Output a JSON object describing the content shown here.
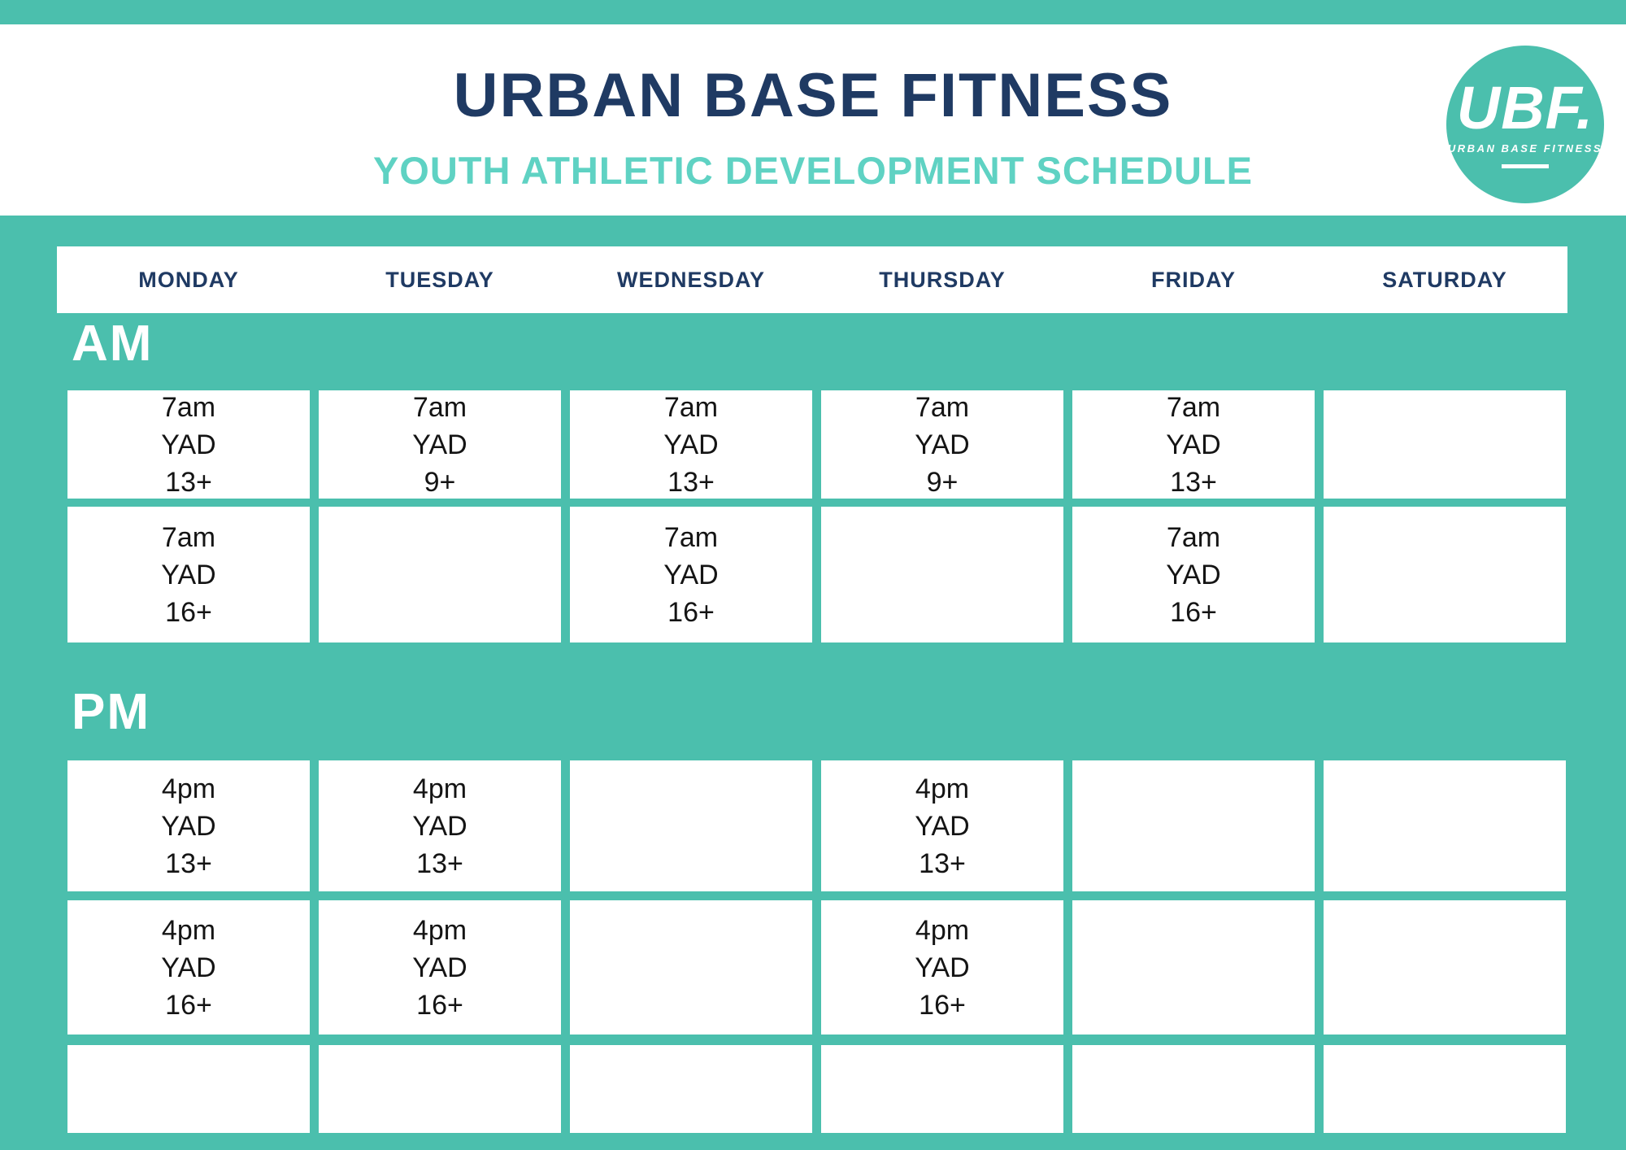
{
  "header": {
    "title": "URBAN BASE FITNESS",
    "subtitle": "YOUTH ATHLETIC DEVELOPMENT SCHEDULE"
  },
  "logo": {
    "acronym": "UBF.",
    "name": "URBAN BASE FITNESS"
  },
  "colors": {
    "teal_background": "#4BBFAD",
    "subtitle_teal": "#5FD2C3",
    "navy": "#1F3A63",
    "cell_background": "#FFFFFF",
    "cell_text": "#141414"
  },
  "days": [
    "MONDAY",
    "TUESDAY",
    "WEDNESDAY",
    "THURSDAY",
    "FRIDAY",
    "SATURDAY"
  ],
  "sections": [
    {
      "label": "AM",
      "rows": [
        [
          [
            "7am",
            "YAD",
            "13+"
          ],
          [
            "7am",
            "YAD",
            "9+"
          ],
          [
            "7am",
            "YAD",
            "13+"
          ],
          [
            "7am",
            "YAD",
            "9+"
          ],
          [
            "7am",
            "YAD",
            "13+"
          ],
          null
        ],
        [
          [
            "7am",
            "YAD",
            "16+"
          ],
          null,
          [
            "7am",
            "YAD",
            "16+"
          ],
          null,
          [
            "7am",
            "YAD",
            "16+"
          ],
          null
        ]
      ]
    },
    {
      "label": "PM",
      "rows": [
        [
          [
            "4pm",
            "YAD",
            "13+"
          ],
          [
            "4pm",
            "YAD",
            "13+"
          ],
          null,
          [
            "4pm",
            "YAD",
            "13+"
          ],
          null,
          null
        ],
        [
          [
            "4pm",
            "YAD",
            "16+"
          ],
          [
            "4pm",
            "YAD",
            "16+"
          ],
          null,
          [
            "4pm",
            "YAD",
            "16+"
          ],
          null,
          null
        ],
        [
          null,
          null,
          null,
          null,
          null,
          null
        ]
      ]
    }
  ]
}
